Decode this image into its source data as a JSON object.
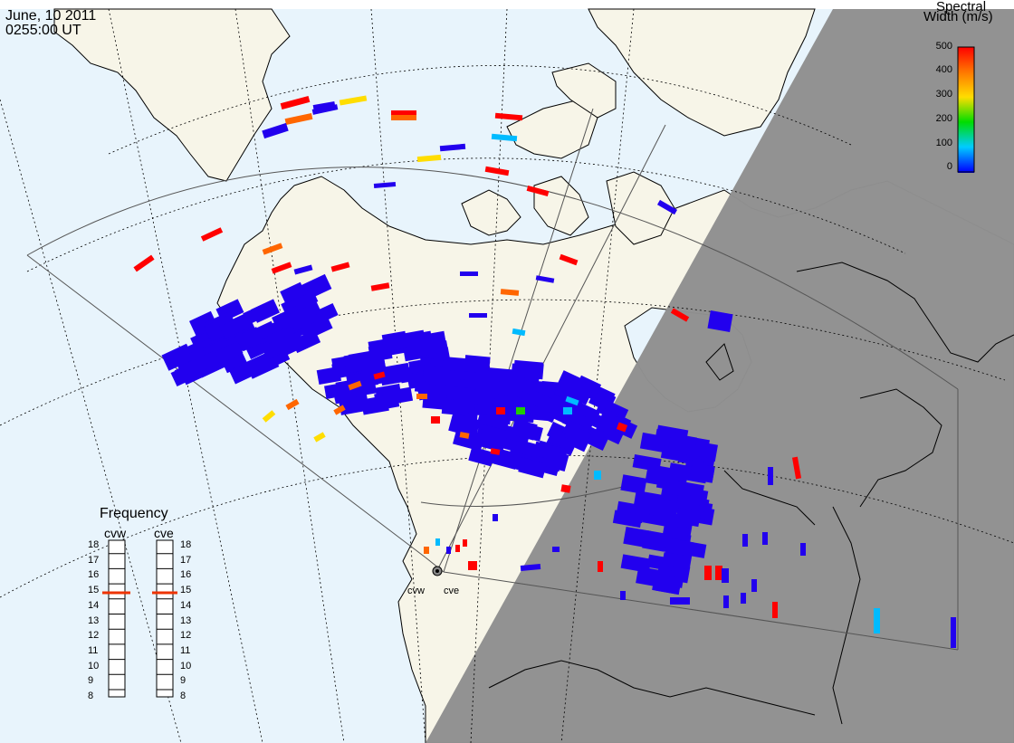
{
  "header": {
    "date": "June, 10 2011",
    "time": "0255:00 UT"
  },
  "legend": {
    "title_line1": "Spectral",
    "title_line2": "Width (m/s)",
    "ticks": [
      "500",
      "400",
      "300",
      "200",
      "100",
      "0"
    ],
    "colors": [
      "#ff0000",
      "#ff7700",
      "#ffff00",
      "#00ff00",
      "#00ccff",
      "#0000ff"
    ],
    "range": [
      0,
      500
    ]
  },
  "frequency_panel": {
    "title": "Frequency",
    "radar_left": "cvw",
    "radar_right": "cve",
    "scale": [
      "18",
      "17",
      "16",
      "15",
      "14",
      "13",
      "12",
      "11",
      "10",
      "9",
      "8"
    ],
    "selected_left": "15",
    "selected_right": "15"
  },
  "sites": {
    "left": "cvw",
    "right": "cve"
  },
  "colors": {
    "ocean": "#e8f4fc",
    "land": "#f7f5e8",
    "night": "#909090",
    "scatter_low": "#2200ee",
    "scatter_high": "#ff0000",
    "freq_marker": "#ee3300"
  }
}
